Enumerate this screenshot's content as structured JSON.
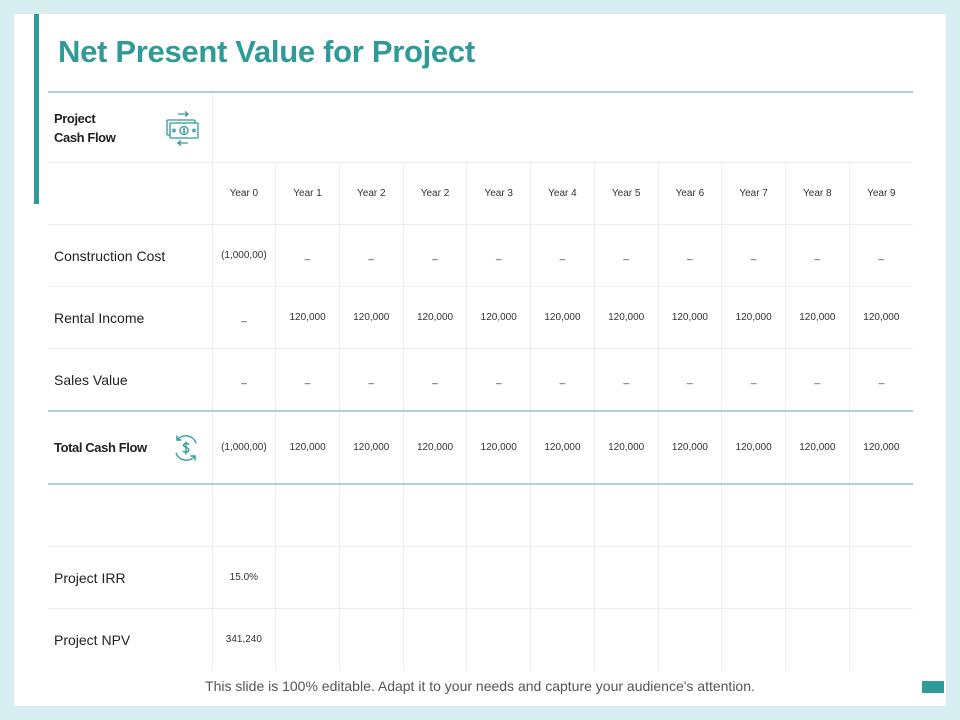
{
  "title": "Net Present Value for Project",
  "header_label": "Project\nCash Flow",
  "header_label_line1": "Project",
  "header_label_line2": "Cash Flow",
  "years": [
    "Year 0",
    "Year 1",
    "Year 2",
    "Year 2",
    "Year 3",
    "Year 4",
    "Year 5",
    "Year 6",
    "Year 7",
    "Year 8",
    "Year 9"
  ],
  "rows": [
    {
      "label": "Construction Cost",
      "values": [
        "(1,000,00)",
        "_",
        "_",
        "_",
        "_",
        "_",
        "_",
        "_",
        "_",
        "_",
        "_"
      ]
    },
    {
      "label": "Rental Income",
      "values": [
        "_",
        "120,000",
        "120,000",
        "120,000",
        "120,000",
        "120,000",
        "120,000",
        "120,000",
        "120,000",
        "120,000",
        "120,000"
      ]
    },
    {
      "label": "Sales Value",
      "values": [
        "_",
        "_",
        "_",
        "_",
        "_",
        "_",
        "_",
        "_",
        "_",
        "_",
        "_"
      ]
    }
  ],
  "total": {
    "label": "Total Cash Flow",
    "values": [
      "(1,000,00)",
      "120,000",
      "120,000",
      "120,000",
      "120,000",
      "120,000",
      "120,000",
      "120,000",
      "120,000",
      "120,000",
      "120,000"
    ]
  },
  "irr": {
    "label": "Project IRR",
    "value": "15.0%"
  },
  "npv": {
    "label": "Project NPV",
    "value": "341,240"
  },
  "footer": "This slide is 100% editable. Adapt it to your needs and capture your audience's attention.",
  "colors": {
    "accent": "#2f9a98",
    "divider": "#a9d2d5",
    "background": "#d6eef0"
  },
  "icons": {
    "header": "money-exchange-icon",
    "total": "dollar-cycle-icon"
  }
}
